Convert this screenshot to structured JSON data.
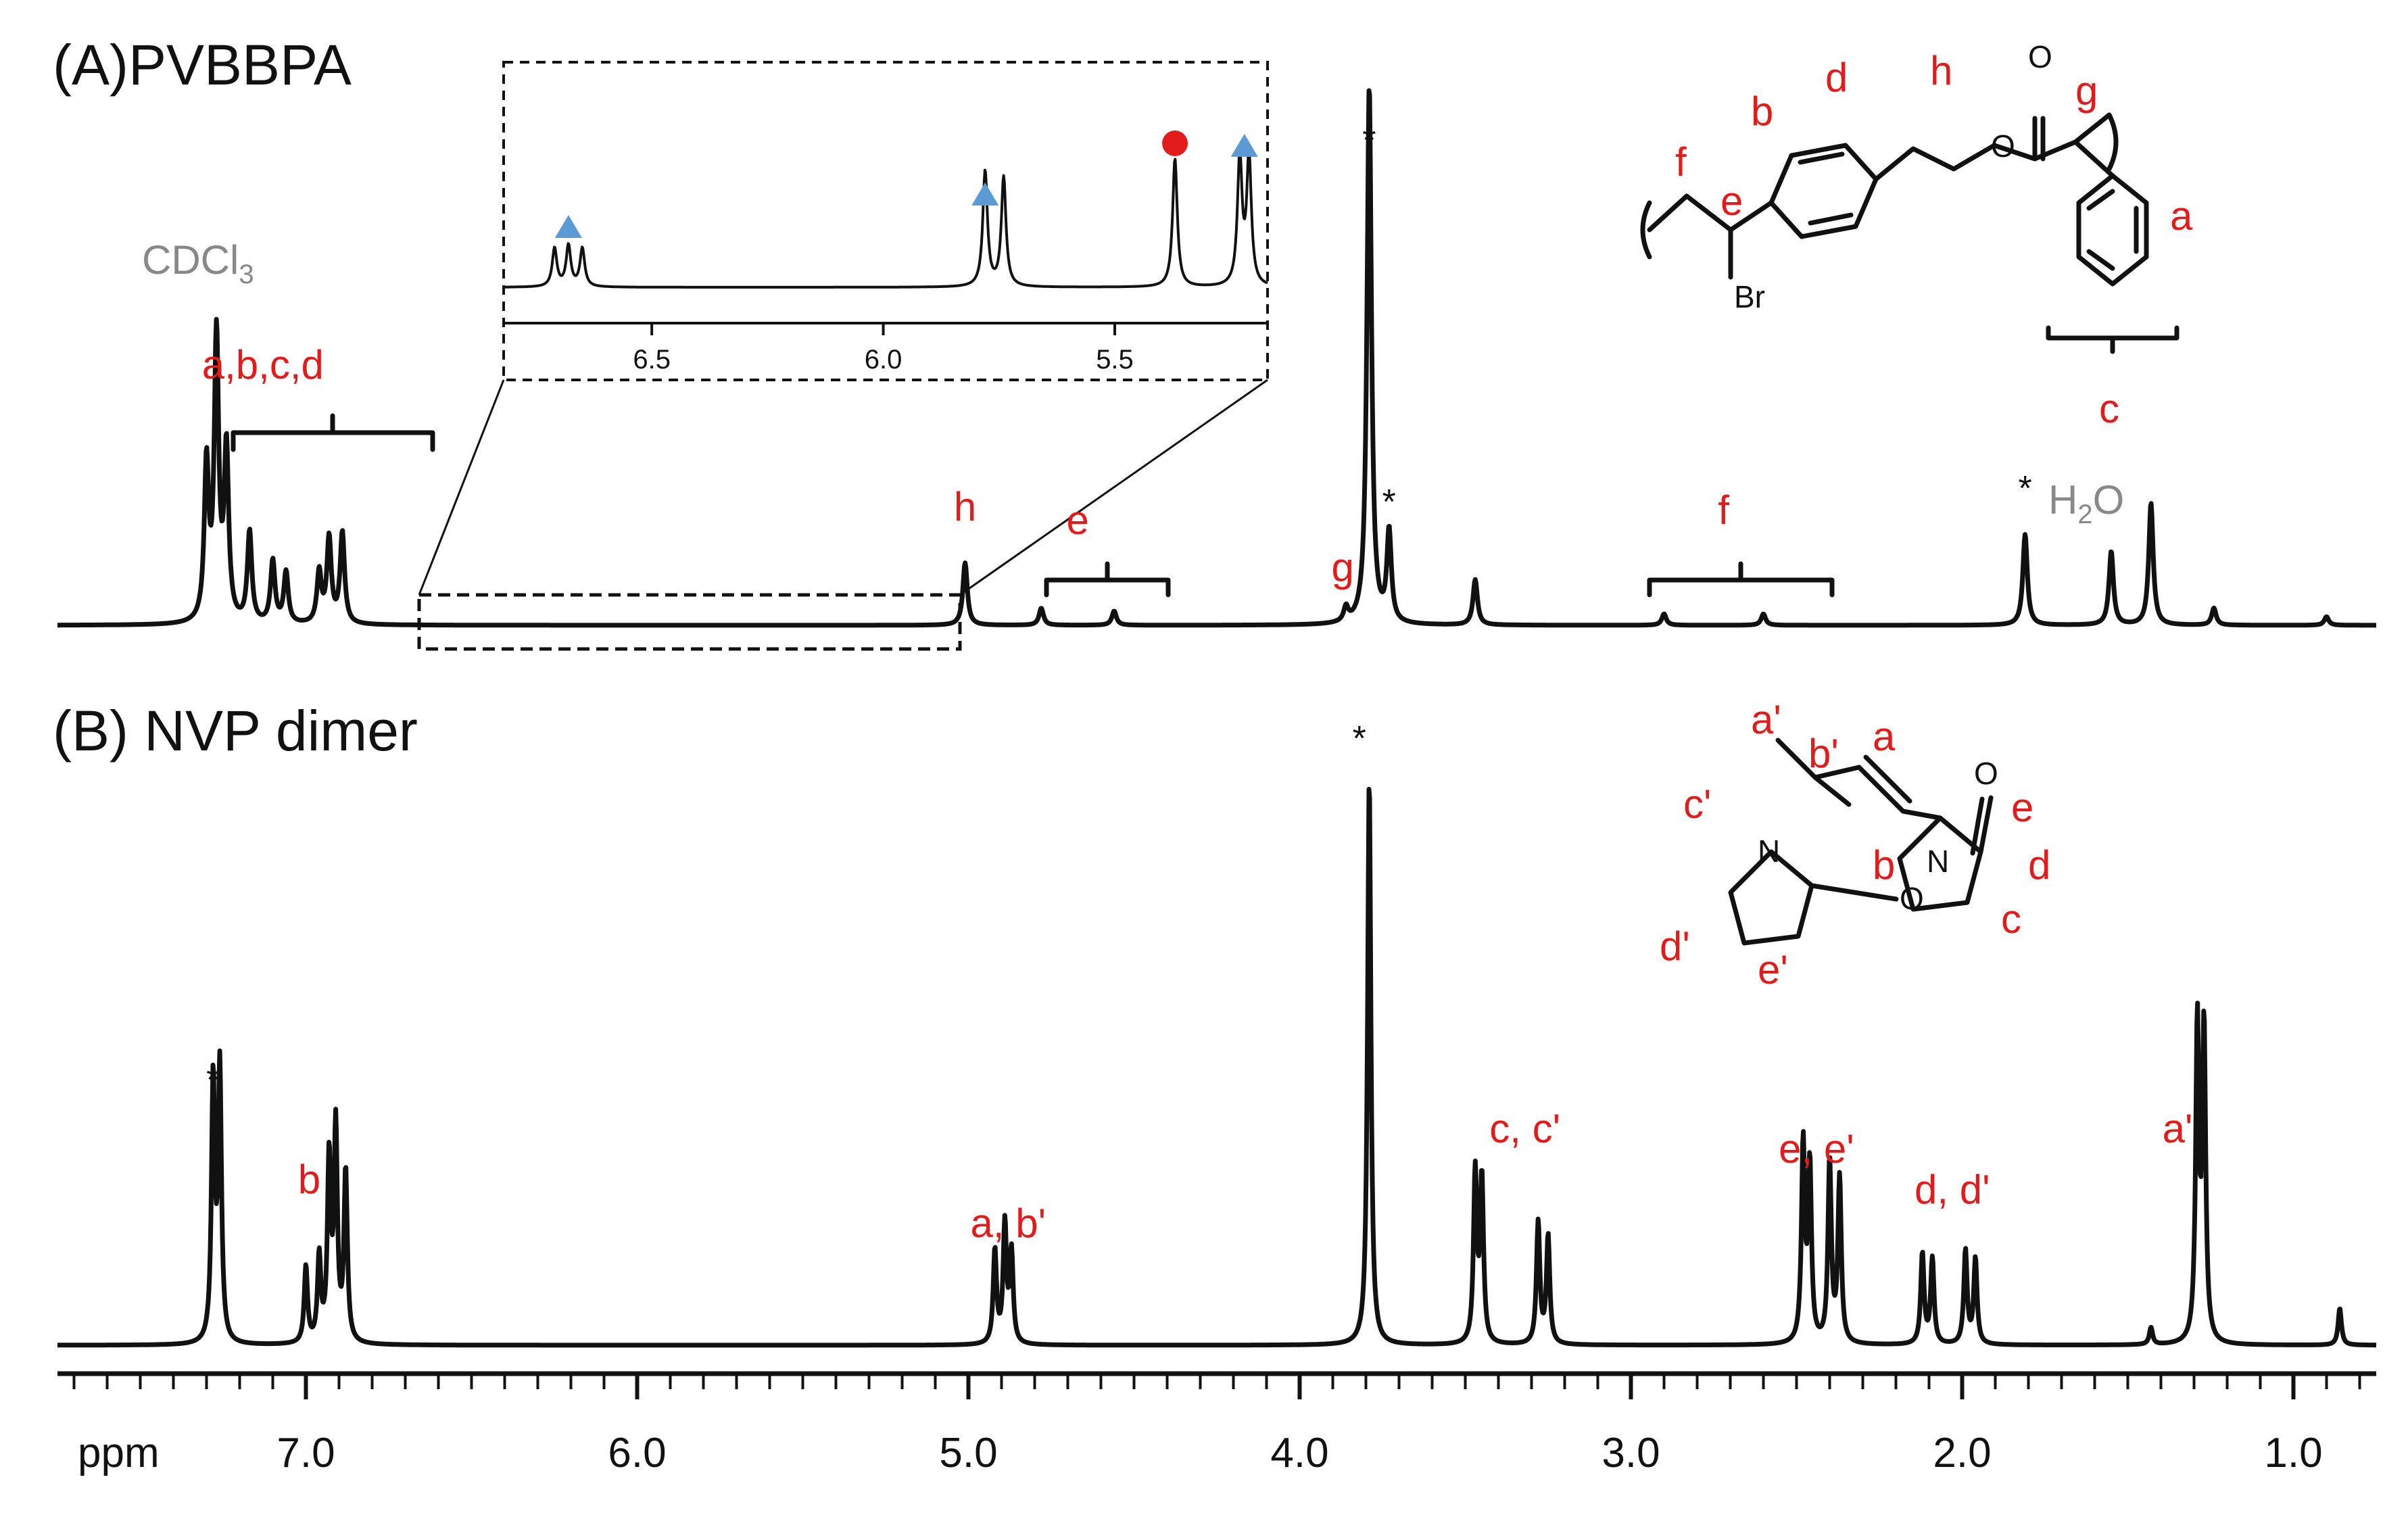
{
  "chart_data": [
    {
      "type": "line",
      "panel": "A",
      "title": "(A)PVBBPA",
      "xlabel": "ppm",
      "xlim": [
        7.75,
        0.75
      ],
      "reversed_x": true,
      "solvent_label": "CDCl3",
      "water_label": "H2O",
      "peaks": [
        {
          "ppm": 7.3,
          "h": 0.55
        },
        {
          "ppm": 7.27,
          "h": 1.0
        },
        {
          "ppm": 7.24,
          "h": 0.6
        },
        {
          "ppm": 7.17,
          "h": 0.32
        },
        {
          "ppm": 7.1,
          "h": 0.22
        },
        {
          "ppm": 7.06,
          "h": 0.18
        },
        {
          "ppm": 6.96,
          "h": 0.18
        },
        {
          "ppm": 6.93,
          "h": 0.3
        },
        {
          "ppm": 6.89,
          "h": 0.32
        },
        {
          "ppm": 5.01,
          "h": 0.22
        },
        {
          "ppm": 4.78,
          "h": 0.06
        },
        {
          "ppm": 4.56,
          "h": 0.05
        },
        {
          "ppm": 3.86,
          "h": 0.05
        },
        {
          "ppm": 3.79,
          "h": 1.9
        },
        {
          "ppm": 3.73,
          "h": 0.32
        },
        {
          "ppm": 3.47,
          "h": 0.16
        },
        {
          "ppm": 2.9,
          "h": 0.04
        },
        {
          "ppm": 2.6,
          "h": 0.04
        },
        {
          "ppm": 1.81,
          "h": 0.32
        },
        {
          "ppm": 1.55,
          "h": 0.26
        },
        {
          "ppm": 1.43,
          "h": 0.43
        },
        {
          "ppm": 1.24,
          "h": 0.06
        },
        {
          "ppm": 0.9,
          "h": 0.03
        }
      ],
      "annotations": [
        {
          "text": "a,b,c,d",
          "ppm": 7.13
        },
        {
          "text": "h",
          "ppm": 5.01
        },
        {
          "text": "e",
          "ppm": 4.67
        },
        {
          "text": "g",
          "ppm": 3.87
        },
        {
          "text": "f",
          "ppm": 2.72
        }
      ],
      "stars_ppm": [
        3.79,
        3.73,
        1.81
      ],
      "inset": {
        "xlim": [
          6.82,
          5.17
        ],
        "ticks": [
          "6.5",
          "6.0",
          "5.5"
        ],
        "tick_values": [
          6.5,
          6.0,
          5.5
        ],
        "peaks": [
          {
            "ppm": 6.71,
            "h": 0.3
          },
          {
            "ppm": 6.68,
            "h": 0.32
          },
          {
            "ppm": 6.65,
            "h": 0.3
          },
          {
            "ppm": 5.78,
            "h": 0.9
          },
          {
            "ppm": 5.74,
            "h": 0.85
          },
          {
            "ppm": 5.37,
            "h": 1.0
          },
          {
            "ppm": 5.23,
            "h": 1.0
          },
          {
            "ppm": 5.21,
            "h": 1.0
          }
        ],
        "triangle_marks_ppm": [
          6.68,
          5.78,
          5.22
        ],
        "circle_marks_ppm": [
          5.37
        ]
      }
    },
    {
      "type": "line",
      "panel": "B",
      "title": "(B) NVP dimer",
      "xlabel": "ppm",
      "xlim": [
        7.75,
        0.75
      ],
      "reversed_x": true,
      "peaks": [
        {
          "ppm": 7.28,
          "h": 0.92
        },
        {
          "ppm": 7.26,
          "h": 0.96
        },
        {
          "ppm": 7.0,
          "h": 0.27
        },
        {
          "ppm": 6.96,
          "h": 0.3
        },
        {
          "ppm": 6.93,
          "h": 0.64
        },
        {
          "ppm": 6.91,
          "h": 0.75
        },
        {
          "ppm": 6.88,
          "h": 0.6
        },
        {
          "ppm": 4.92,
          "h": 0.33
        },
        {
          "ppm": 4.89,
          "h": 0.42
        },
        {
          "ppm": 4.87,
          "h": 0.32
        },
        {
          "ppm": 3.79,
          "h": 2.0
        },
        {
          "ppm": 3.47,
          "h": 0.6
        },
        {
          "ppm": 3.45,
          "h": 0.58
        },
        {
          "ppm": 3.28,
          "h": 0.43
        },
        {
          "ppm": 3.25,
          "h": 0.38
        },
        {
          "ppm": 2.48,
          "h": 0.7
        },
        {
          "ppm": 2.46,
          "h": 0.62
        },
        {
          "ppm": 2.4,
          "h": 0.64
        },
        {
          "ppm": 2.37,
          "h": 0.58
        },
        {
          "ppm": 2.12,
          "h": 0.32
        },
        {
          "ppm": 2.09,
          "h": 0.3
        },
        {
          "ppm": 1.99,
          "h": 0.33
        },
        {
          "ppm": 1.96,
          "h": 0.3
        },
        {
          "ppm": 1.29,
          "h": 1.12
        },
        {
          "ppm": 1.27,
          "h": 1.1
        },
        {
          "ppm": 0.86,
          "h": 0.13
        },
        {
          "ppm": 1.43,
          "h": 0.06
        }
      ],
      "annotations": [
        {
          "text": "b",
          "ppm": 6.99
        },
        {
          "text": "a, b'",
          "ppm": 4.88
        },
        {
          "text": "c, c'",
          "ppm": 3.32
        },
        {
          "text": "e, e'",
          "ppm": 2.44
        },
        {
          "text": "d, d'",
          "ppm": 2.03
        },
        {
          "text": "a'",
          "ppm": 1.35
        }
      ],
      "stars_ppm": [
        7.28,
        3.82
      ]
    }
  ],
  "axis": {
    "unit_label": "ppm",
    "major_ticks": [
      "7.0",
      "6.0",
      "5.0",
      "4.0",
      "3.0",
      "2.0",
      "1.0"
    ],
    "major_values": [
      7.0,
      6.0,
      5.0,
      4.0,
      3.0,
      2.0,
      1.0
    ]
  },
  "structure_a": {
    "atom_labels": [
      "f",
      "e",
      "b",
      "d",
      "h",
      "g",
      "a",
      "c"
    ],
    "hetero": [
      "Br",
      "O",
      "O"
    ]
  },
  "structure_b": {
    "atom_labels": [
      "a'",
      "b'",
      "a",
      "b",
      "c'",
      "d'",
      "e'",
      "c",
      "d",
      "e"
    ],
    "hetero": [
      "N",
      "N",
      "O",
      "O"
    ]
  }
}
